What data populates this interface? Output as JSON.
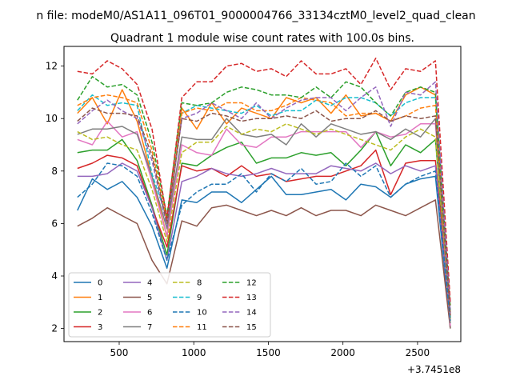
{
  "chart_data": {
    "type": "line",
    "suptitle": "n file: modeM0/AS1A11_096T01_9000004766_33134cztM0_level2_quad_clean",
    "title": "Quadrant 1 module wise count rates with 100.0s bins.",
    "xlabel": "",
    "ylabel": "",
    "x_offset_label": "+3.7451e8",
    "xlim": [
      130,
      2790
    ],
    "ylim": [
      1.5,
      12.75
    ],
    "xticks": [
      500,
      1000,
      1500,
      2000,
      2500
    ],
    "yticks": [
      2,
      4,
      6,
      8,
      10,
      12
    ],
    "grid": false,
    "legend": {
      "placement": "lower-left",
      "columns": 4
    },
    "x": [
      220,
      320,
      420,
      520,
      620,
      720,
      820,
      920,
      1020,
      1120,
      1220,
      1320,
      1420,
      1520,
      1620,
      1720,
      1820,
      1920,
      2020,
      2120,
      2220,
      2320,
      2420,
      2520,
      2620,
      2720
    ],
    "series": [
      {
        "name": "0",
        "color": "#1f77b4",
        "dash": "solid",
        "values": [
          6.5,
          7.7,
          7.3,
          7.6,
          7.0,
          5.9,
          4.3,
          6.9,
          6.8,
          7.2,
          7.2,
          6.8,
          7.3,
          7.8,
          7.1,
          7.1,
          7.2,
          7.3,
          6.9,
          7.5,
          7.4,
          7.0,
          7.5,
          7.7,
          7.8,
          2.0
        ]
      },
      {
        "name": "1",
        "color": "#ff7f0e",
        "dash": "solid",
        "values": [
          10.2,
          10.8,
          9.8,
          11.1,
          9.9,
          7.8,
          5.5,
          10.4,
          9.6,
          10.6,
          9.8,
          10.4,
          10.2,
          10.0,
          10.8,
          10.6,
          10.8,
          10.2,
          10.9,
          10.1,
          10.2,
          9.9,
          10.9,
          11.2,
          10.9,
          2.3
        ]
      },
      {
        "name": "2",
        "color": "#2ca02c",
        "dash": "solid",
        "values": [
          8.7,
          8.8,
          8.8,
          9.2,
          8.4,
          6.7,
          4.8,
          8.3,
          8.2,
          8.6,
          8.9,
          9.1,
          8.3,
          8.5,
          8.5,
          8.7,
          8.6,
          8.7,
          8.2,
          8.8,
          9.5,
          8.2,
          9.0,
          8.7,
          9.2,
          2.4
        ]
      },
      {
        "name": "3",
        "color": "#d62728",
        "dash": "solid",
        "values": [
          8.1,
          8.3,
          8.6,
          8.5,
          8.2,
          6.6,
          5.1,
          8.2,
          8.0,
          8.1,
          7.8,
          8.2,
          7.8,
          7.9,
          7.6,
          7.7,
          7.8,
          7.8,
          8.0,
          8.2,
          8.8,
          7.1,
          8.3,
          8.4,
          8.4,
          2.5
        ]
      },
      {
        "name": "4",
        "color": "#9467bd",
        "dash": "solid",
        "values": [
          7.8,
          7.8,
          7.9,
          8.3,
          8.0,
          6.6,
          4.6,
          7.6,
          7.8,
          8.1,
          7.9,
          7.8,
          7.9,
          8.1,
          7.9,
          7.9,
          7.9,
          8.2,
          8.1,
          8.0,
          8.3,
          7.9,
          8.2,
          8.0,
          8.2,
          2.1
        ]
      },
      {
        "name": "5",
        "color": "#8c564b",
        "dash": "solid",
        "values": [
          5.9,
          6.2,
          6.6,
          6.3,
          6.0,
          4.6,
          3.7,
          6.1,
          5.9,
          6.6,
          6.7,
          6.5,
          6.3,
          6.5,
          6.3,
          6.6,
          6.3,
          6.5,
          6.5,
          6.3,
          6.7,
          6.5,
          6.3,
          6.6,
          6.9,
          2.0
        ]
      },
      {
        "name": "6",
        "color": "#e377c2",
        "dash": "solid",
        "values": [
          9.2,
          9.0,
          9.9,
          9.3,
          9.5,
          7.6,
          5.5,
          9.0,
          8.7,
          8.6,
          9.6,
          9.0,
          8.9,
          9.3,
          9.3,
          9.5,
          9.5,
          9.5,
          9.5,
          8.9,
          9.5,
          9.3,
          9.4,
          9.8,
          9.8,
          2.1
        ]
      },
      {
        "name": "7",
        "color": "#7f7f7f",
        "dash": "solid",
        "values": [
          9.4,
          9.6,
          9.6,
          9.7,
          9.4,
          7.8,
          5.8,
          9.3,
          9.2,
          9.2,
          10.0,
          9.4,
          9.3,
          9.4,
          9.0,
          9.8,
          9.3,
          9.8,
          9.6,
          9.4,
          9.5,
          9.2,
          9.6,
          9.3,
          10.0,
          2.2
        ]
      },
      {
        "name": "8",
        "color": "#bcbd22",
        "dash": "dashed",
        "values": [
          9.5,
          9.2,
          9.3,
          9.0,
          8.8,
          7.3,
          5.3,
          8.7,
          9.1,
          9.1,
          9.7,
          9.4,
          9.6,
          9.5,
          9.8,
          9.6,
          9.4,
          9.6,
          9.4,
          9.2,
          9.0,
          8.8,
          9.3,
          9.6,
          9.3,
          2.6
        ]
      },
      {
        "name": "9",
        "color": "#17becf",
        "dash": "dashed",
        "values": [
          10.3,
          10.9,
          10.5,
          10.6,
          10.5,
          7.9,
          6.2,
          10.2,
          10.5,
          10.4,
          10.3,
          10.2,
          10.5,
          10.1,
          10.3,
          10.3,
          10.7,
          10.5,
          10.8,
          10.8,
          10.6,
          10.1,
          10.6,
          10.8,
          10.8,
          2.7
        ]
      },
      {
        "name": "10",
        "color": "#1f77b4",
        "dash": "dashed",
        "values": [
          7.0,
          7.5,
          8.3,
          8.2,
          7.8,
          6.4,
          4.6,
          6.7,
          7.2,
          7.5,
          7.5,
          7.9,
          7.2,
          7.9,
          7.6,
          8.1,
          7.5,
          7.6,
          8.3,
          7.8,
          8.2,
          7.0,
          7.5,
          7.8,
          8.0,
          2.3
        ]
      },
      {
        "name": "11",
        "color": "#ff7f0e",
        "dash": "dashed",
        "values": [
          10.5,
          10.8,
          10.9,
          10.8,
          10.6,
          8.8,
          6.1,
          10.2,
          10.4,
          10.3,
          10.6,
          10.6,
          10.3,
          10.3,
          10.5,
          10.8,
          10.7,
          10.6,
          10.1,
          10.2,
          10.2,
          9.9,
          10.1,
          10.4,
          10.5,
          2.9
        ]
      },
      {
        "name": "12",
        "color": "#2ca02c",
        "dash": "dashed",
        "values": [
          10.7,
          11.6,
          11.2,
          11.3,
          10.9,
          9.1,
          6.3,
          10.6,
          10.5,
          10.6,
          11.0,
          11.2,
          11.1,
          10.9,
          10.9,
          10.8,
          11.2,
          10.8,
          11.4,
          11.2,
          10.6,
          10.1,
          11.0,
          11.2,
          11.0,
          2.8
        ]
      },
      {
        "name": "13",
        "color": "#d62728",
        "dash": "dashed",
        "values": [
          11.8,
          11.7,
          12.2,
          11.9,
          11.3,
          9.6,
          6.2,
          10.8,
          11.4,
          11.4,
          12.0,
          12.1,
          11.8,
          11.9,
          11.6,
          12.2,
          11.7,
          11.7,
          11.9,
          11.3,
          12.3,
          11.1,
          11.9,
          11.8,
          12.2,
          3.0
        ]
      },
      {
        "name": "14",
        "color": "#9467bd",
        "dash": "dashed",
        "values": [
          9.8,
          10.3,
          10.7,
          10.3,
          10.0,
          8.4,
          5.9,
          10.0,
          10.2,
          10.6,
          10.3,
          10.0,
          10.6,
          10.0,
          10.4,
          10.7,
          10.8,
          10.8,
          10.3,
          10.8,
          11.2,
          9.7,
          11.0,
          10.9,
          11.4,
          2.6
        ]
      },
      {
        "name": "15",
        "color": "#8c564b",
        "dash": "dashed",
        "values": [
          9.9,
          10.4,
          10.2,
          10.2,
          10.1,
          8.6,
          6.0,
          10.0,
          9.9,
          10.2,
          10.1,
          9.9,
          10.0,
          10.0,
          10.1,
          10.0,
          10.3,
          9.9,
          10.0,
          10.0,
          10.3,
          9.9,
          10.1,
          10.0,
          10.1,
          2.5
        ]
      }
    ]
  }
}
